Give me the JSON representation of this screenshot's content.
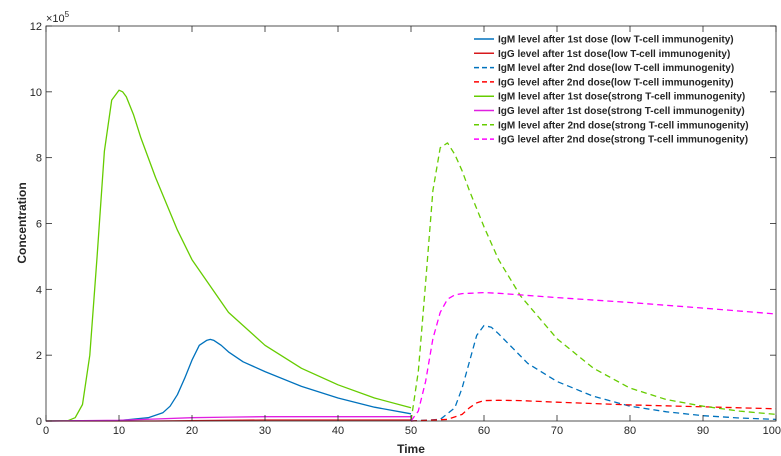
{
  "chart_data": {
    "type": "line",
    "xlabel": "Time",
    "ylabel": "Concentration",
    "xlim": [
      0,
      100
    ],
    "ylim": [
      0,
      1200000
    ],
    "x_ticks": [
      0,
      10,
      20,
      30,
      40,
      50,
      60,
      70,
      80,
      90,
      100
    ],
    "y_ticks": [
      0,
      200000,
      400000,
      600000,
      800000,
      1000000,
      1200000
    ],
    "y_tick_labels": [
      "0",
      "2",
      "4",
      "6",
      "8",
      "10",
      "12"
    ],
    "y_exponent_label": "×10",
    "y_exponent_power": "5",
    "legend_position": "top-right",
    "grid": false,
    "series": [
      {
        "name": "IgM level after 1st dose (low T-cell immunogenity)",
        "color": "#0072BD",
        "dash": "solid",
        "x": [
          0,
          10,
          14,
          16,
          17,
          18,
          19,
          20,
          21,
          22,
          22.5,
          23,
          24,
          25,
          27,
          30,
          35,
          40,
          45,
          50
        ],
        "y": [
          0,
          1500,
          10000,
          25000,
          45000,
          80000,
          130000,
          185000,
          230000,
          245000,
          248000,
          245000,
          230000,
          210000,
          180000,
          150000,
          105000,
          70000,
          42000,
          22000
        ]
      },
      {
        "name": "IgG level after 1st dose(low T-cell immunogenity)",
        "color": "#D7191C",
        "dash": "solid",
        "x": [
          0,
          15,
          20,
          25,
          30,
          40,
          50
        ],
        "y": [
          0,
          0,
          1000,
          2000,
          3000,
          3000,
          3000
        ]
      },
      {
        "name": "IgM level after 2nd dose(low T-cell immunogenity)",
        "color": "#0072BD",
        "dash": "dashed",
        "x": [
          50,
          54,
          56,
          57,
          58,
          59,
          60,
          61,
          62,
          64,
          66,
          70,
          75,
          80,
          85,
          90,
          95,
          100
        ],
        "y": [
          0,
          5000,
          40000,
          100000,
          180000,
          260000,
          290000,
          285000,
          265000,
          220000,
          175000,
          120000,
          75000,
          45000,
          28000,
          16000,
          9000,
          5000
        ]
      },
      {
        "name": "IgG level after 2nd dose(low T-cell immunogenity)",
        "color": "#FF0000",
        "dash": "dashed",
        "x": [
          50,
          55,
          57,
          58,
          59,
          60,
          62,
          65,
          70,
          80,
          90,
          100
        ],
        "y": [
          0,
          5000,
          20000,
          40000,
          55000,
          62000,
          63000,
          62000,
          57000,
          49000,
          43000,
          37000
        ]
      },
      {
        "name": "IgM level after 1st dose(strong T-cell immunogenity)",
        "color": "#66CC00",
        "dash": "solid",
        "x": [
          0,
          3,
          4,
          5,
          6,
          7,
          8,
          9,
          10,
          10.5,
          11,
          12,
          13,
          15,
          18,
          20,
          25,
          30,
          35,
          40,
          45,
          50
        ],
        "y": [
          0,
          1000,
          10000,
          50000,
          200000,
          500000,
          820000,
          975000,
          1005000,
          1000000,
          985000,
          930000,
          860000,
          740000,
          580000,
          490000,
          330000,
          230000,
          160000,
          110000,
          70000,
          40000
        ]
      },
      {
        "name": "IgG level after 1st dose(strong T-cell immunogenity)",
        "color": "#E020E0",
        "dash": "solid",
        "x": [
          0,
          10,
          15,
          20,
          25,
          30,
          40,
          50
        ],
        "y": [
          0,
          2000,
          6000,
          10000,
          12000,
          13000,
          13000,
          13000
        ]
      },
      {
        "name": "IgM level after 2nd dose(strong T-cell immunogenity)",
        "color": "#66CC00",
        "dash": "dashed",
        "x": [
          50,
          51,
          52,
          53,
          54,
          55,
          56,
          57,
          58,
          60,
          62,
          65,
          70,
          75,
          80,
          85,
          90,
          95,
          100
        ],
        "y": [
          0,
          150000,
          420000,
          700000,
          830000,
          845000,
          810000,
          760000,
          700000,
          590000,
          490000,
          380000,
          250000,
          160000,
          100000,
          65000,
          45000,
          30000,
          20000
        ]
      },
      {
        "name": "IgG level after 2nd dose(strong T-cell immunogenity)",
        "color": "#FF00FF",
        "dash": "dashed",
        "x": [
          50,
          51,
          52,
          53,
          54,
          55,
          56,
          57,
          58,
          60,
          62,
          65,
          70,
          80,
          90,
          100
        ],
        "y": [
          0,
          30000,
          120000,
          250000,
          330000,
          370000,
          383000,
          387000,
          388000,
          390000,
          388000,
          383000,
          375000,
          360000,
          343000,
          325000
        ]
      }
    ]
  }
}
